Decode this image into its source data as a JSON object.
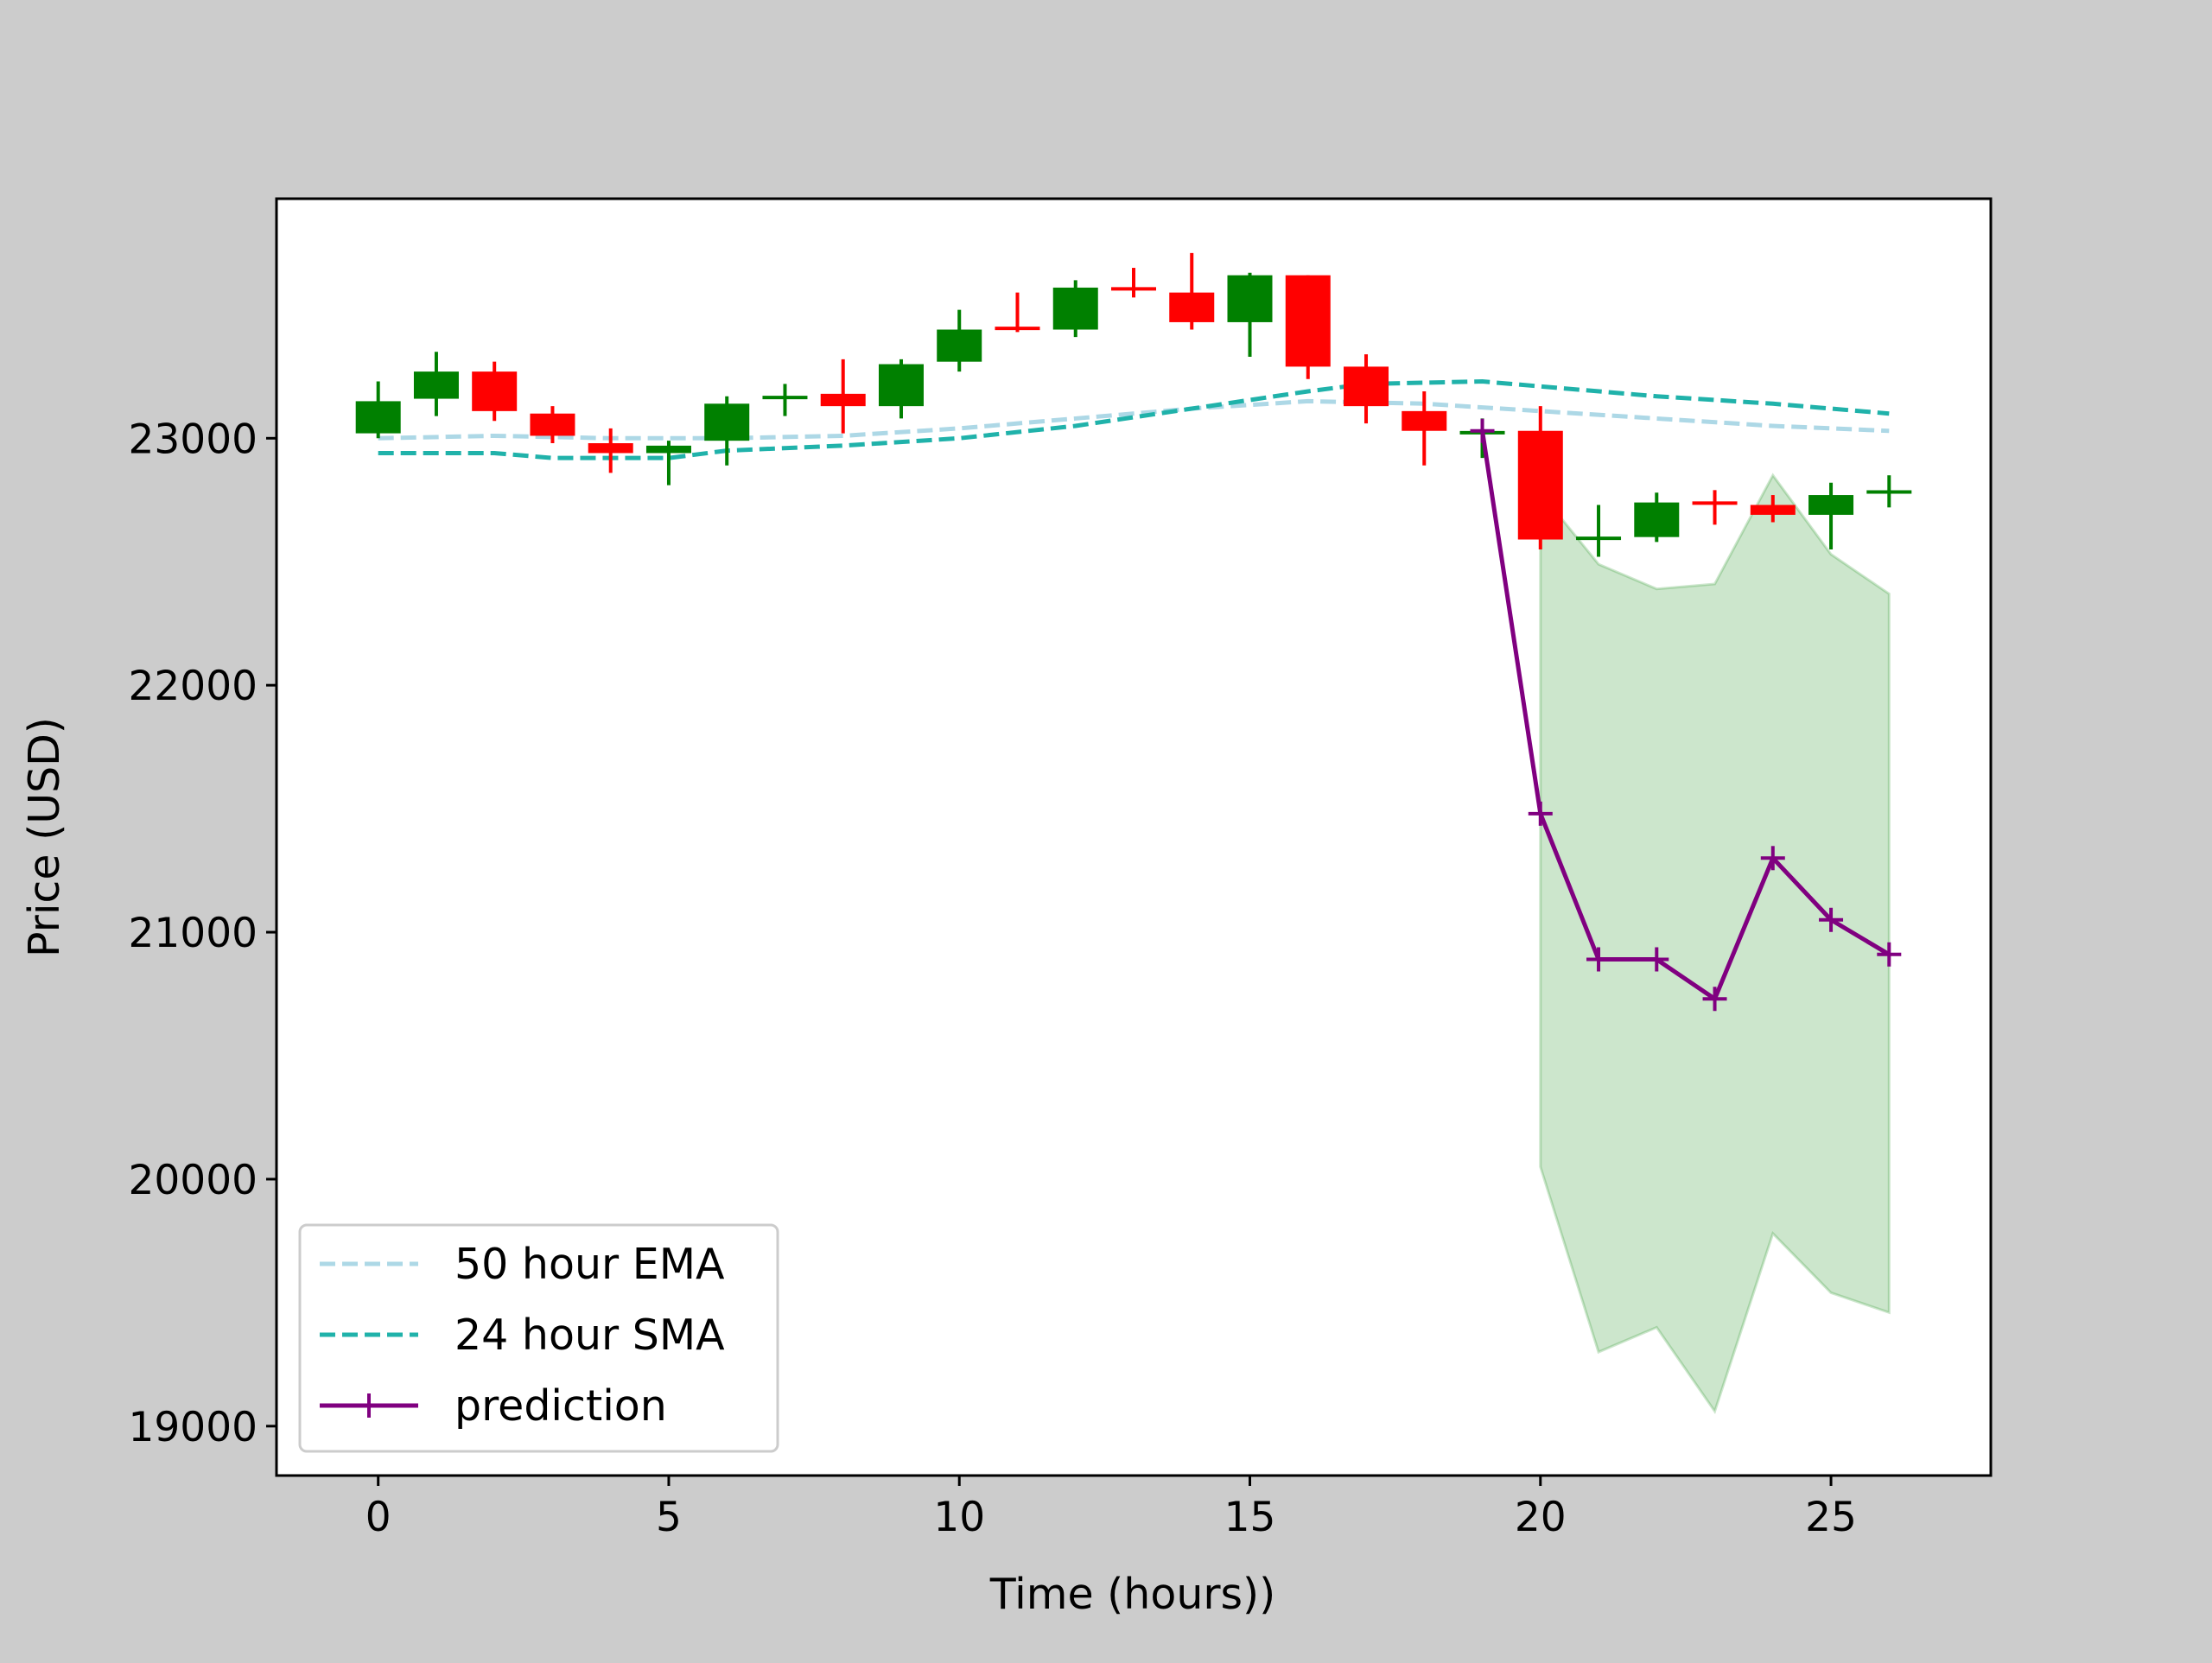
{
  "chart_data": {
    "type": "candlestick",
    "xlabel": "Time (hours))",
    "ylabel": "Price (USD)",
    "xlim": [
      -1.75,
      27.75
    ],
    "ylim": [
      18800,
      23970
    ],
    "xticks": [
      0,
      5,
      10,
      15,
      20,
      25
    ],
    "yticks": [
      19000,
      20000,
      21000,
      22000,
      23000
    ],
    "grid": false,
    "legend_position": "lower-left",
    "colors": {
      "up": "#008000",
      "down": "#ff0000",
      "ema": "#add8e6",
      "sma": "#20b2aa",
      "prediction": "#800080",
      "band": "#008000"
    },
    "legend": [
      {
        "label": "50 hour EMA",
        "style": "dashed",
        "color": "#add8e6"
      },
      {
        "label": "24 hour SMA",
        "style": "dashed",
        "color": "#20b2aa"
      },
      {
        "label": "prediction",
        "style": "line-marker",
        "color": "#800080"
      }
    ],
    "candles": [
      {
        "x": 0,
        "open": 23020,
        "close": 23150,
        "high": 23230,
        "low": 23000
      },
      {
        "x": 1,
        "open": 23160,
        "close": 23270,
        "high": 23350,
        "low": 23090
      },
      {
        "x": 2,
        "open": 23270,
        "close": 23110,
        "high": 23310,
        "low": 23070
      },
      {
        "x": 3,
        "open": 23100,
        "close": 23010,
        "high": 23130,
        "low": 22980
      },
      {
        "x": 4,
        "open": 22980,
        "close": 22940,
        "high": 23040,
        "low": 22860
      },
      {
        "x": 5,
        "open": 22940,
        "close": 22970,
        "high": 22990,
        "low": 22810
      },
      {
        "x": 6,
        "open": 22990,
        "close": 23140,
        "high": 23170,
        "low": 22890
      },
      {
        "x": 7,
        "open": 23160,
        "close": 23170,
        "high": 23220,
        "low": 23090
      },
      {
        "x": 8,
        "open": 23180,
        "close": 23130,
        "high": 23320,
        "low": 23020
      },
      {
        "x": 9,
        "open": 23130,
        "close": 23300,
        "high": 23320,
        "low": 23080
      },
      {
        "x": 10,
        "open": 23310,
        "close": 23440,
        "high": 23520,
        "low": 23270
      },
      {
        "x": 11,
        "open": 23450,
        "close": 23440,
        "high": 23590,
        "low": 23430
      },
      {
        "x": 12,
        "open": 23440,
        "close": 23610,
        "high": 23640,
        "low": 23410
      },
      {
        "x": 13,
        "open": 23610,
        "close": 23600,
        "high": 23690,
        "low": 23570
      },
      {
        "x": 14,
        "open": 23590,
        "close": 23470,
        "high": 23750,
        "low": 23440
      },
      {
        "x": 15,
        "open": 23470,
        "close": 23660,
        "high": 23670,
        "low": 23330
      },
      {
        "x": 16,
        "open": 23660,
        "close": 23290,
        "high": 23660,
        "low": 23240
      },
      {
        "x": 17,
        "open": 23290,
        "close": 23130,
        "high": 23340,
        "low": 23060
      },
      {
        "x": 18,
        "open": 23110,
        "close": 23030,
        "high": 23190,
        "low": 22890
      },
      {
        "x": 19,
        "open": 23020,
        "close": 23025,
        "high": 23080,
        "low": 22920
      },
      {
        "x": 20,
        "open": 23030,
        "close": 22590,
        "high": 23130,
        "low": 22550
      },
      {
        "x": 21,
        "open": 22590,
        "close": 22600,
        "high": 22730,
        "low": 22520
      },
      {
        "x": 22,
        "open": 22600,
        "close": 22740,
        "high": 22780,
        "low": 22580
      },
      {
        "x": 23,
        "open": 22740,
        "close": 22735,
        "high": 22790,
        "low": 22650
      },
      {
        "x": 24,
        "open": 22730,
        "close": 22690,
        "high": 22770,
        "low": 22660
      },
      {
        "x": 25,
        "open": 22690,
        "close": 22770,
        "high": 22820,
        "low": 22550
      },
      {
        "x": 26,
        "open": 22780,
        "close": 22785,
        "high": 22850,
        "low": 22720
      }
    ],
    "series": [
      {
        "name": "50 hour EMA",
        "x": [
          0,
          2,
          4,
          6,
          8,
          10,
          12,
          14,
          16,
          18,
          20,
          22,
          24,
          26
        ],
        "y": [
          23000,
          23010,
          23000,
          23000,
          23010,
          23040,
          23080,
          23120,
          23150,
          23140,
          23110,
          23080,
          23050,
          23030
        ]
      },
      {
        "name": "24 hour SMA",
        "x": [
          0,
          2,
          3,
          5,
          6,
          8,
          10,
          12,
          14,
          16,
          17,
          19,
          20,
          22,
          24,
          26
        ],
        "y": [
          22940,
          22940,
          22920,
          22920,
          22950,
          22970,
          23000,
          23050,
          23120,
          23190,
          23220,
          23230,
          23210,
          23170,
          23140,
          23100
        ]
      },
      {
        "name": "prediction",
        "x": [
          19,
          20,
          21,
          22,
          23,
          24,
          25,
          26
        ],
        "y": [
          23030,
          21480,
          20890,
          20890,
          20730,
          21300,
          21050,
          20910
        ]
      }
    ],
    "prediction_band": {
      "x": [
        20,
        21,
        22,
        23,
        24,
        25,
        26
      ],
      "upper": [
        22780,
        22490,
        22390,
        22410,
        22850,
        22530,
        22370
      ],
      "lower": [
        20050,
        19300,
        19400,
        19060,
        19780,
        19540,
        19460
      ]
    }
  }
}
